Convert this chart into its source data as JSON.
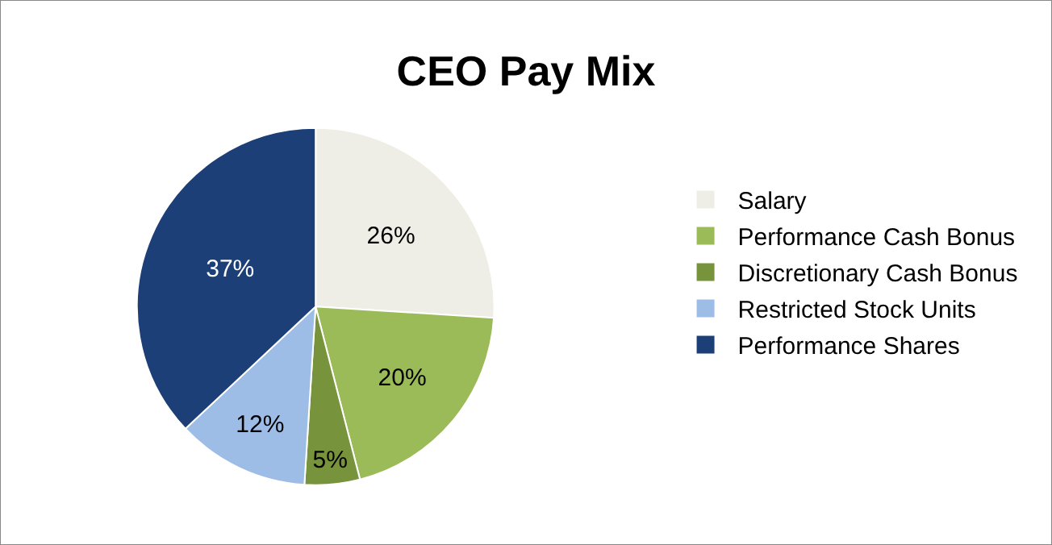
{
  "chart_data": {
    "type": "pie",
    "title": "CEO Pay Mix",
    "categories": [
      "Salary",
      "Performance Cash Bonus",
      "Discretionary Cash Bonus",
      "Restricted Stock Units",
      "Performance Shares"
    ],
    "values": [
      26,
      20,
      5,
      12,
      37
    ],
    "colors": [
      "#eeeee6",
      "#9bbb59",
      "#77933c",
      "#9dbde6",
      "#1c3f78"
    ],
    "value_labels": [
      "26%",
      "20%",
      "5%",
      "12%",
      "37%"
    ],
    "legend": "right"
  }
}
